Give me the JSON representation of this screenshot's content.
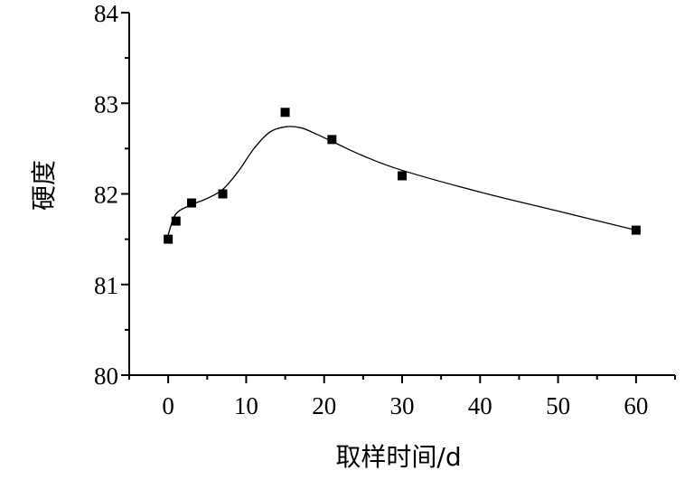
{
  "chart_data": {
    "type": "scatter",
    "xlabel": "取样时间/d",
    "ylabel": "硬度",
    "xlim": [
      -5,
      65
    ],
    "ylim": [
      80,
      84
    ],
    "x_ticks": [
      0,
      10,
      20,
      30,
      40,
      50,
      60
    ],
    "y_ticks": [
      80,
      81,
      82,
      83,
      84
    ],
    "x_minor_step": 5,
    "y_minor_step": 0.5,
    "grid": false,
    "marker": "square",
    "marker_color": "#000000",
    "series": [
      {
        "x": [
          0,
          1,
          3,
          7,
          15,
          21,
          30,
          60
        ],
        "y": [
          81.5,
          81.7,
          81.9,
          82.0,
          82.9,
          82.6,
          82.2,
          81.6
        ]
      }
    ],
    "fit_curve": {
      "x": [
        0,
        1,
        3,
        5,
        7,
        9,
        11,
        13,
        15,
        17,
        19,
        21,
        25,
        30,
        40,
        50,
        60
      ],
      "y": [
        81.55,
        81.78,
        81.88,
        81.95,
        82.05,
        82.25,
        82.5,
        82.68,
        82.74,
        82.73,
        82.66,
        82.58,
        82.42,
        82.26,
        82.02,
        81.81,
        81.6
      ]
    }
  }
}
